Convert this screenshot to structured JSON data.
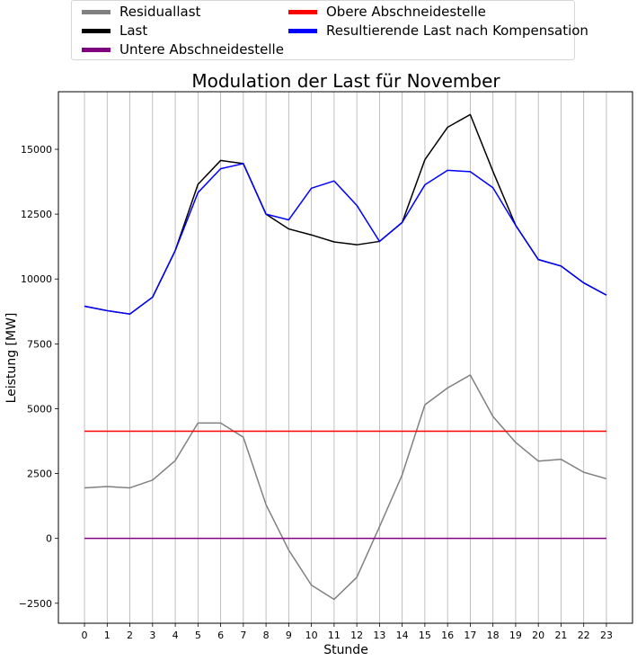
{
  "chart_data": {
    "type": "line",
    "title": "Modulation der Last für November",
    "xlabel": "Stunde",
    "ylabel": "Leistung [MW]",
    "xlim": [
      -1.15,
      24.15
    ],
    "ylim": [
      -3270,
      17220
    ],
    "grid": "vertical",
    "legend_position": "top",
    "x": [
      0,
      1,
      2,
      3,
      4,
      5,
      6,
      7,
      8,
      9,
      10,
      11,
      12,
      13,
      14,
      15,
      16,
      17,
      18,
      19,
      20,
      21,
      22,
      23
    ],
    "yticks": [
      -2500,
      0,
      2500,
      5000,
      7500,
      10000,
      12500,
      15000
    ],
    "ytick_labels": [
      "−2500",
      "0",
      "2500",
      "5000",
      "7500",
      "10000",
      "12500",
      "15000"
    ],
    "xtick_labels": [
      "0",
      "1",
      "2",
      "3",
      "4",
      "5",
      "6",
      "7",
      "8",
      "9",
      "10",
      "11",
      "12",
      "13",
      "14",
      "15",
      "16",
      "17",
      "18",
      "19",
      "20",
      "21",
      "22",
      "23"
    ],
    "series": [
      {
        "name": "Residuallast",
        "color": "#808080",
        "values": [
          1950,
          2000,
          1950,
          2250,
          3000,
          4450,
          4450,
          3900,
          1300,
          -450,
          -1800,
          -2350,
          -1500,
          450,
          2450,
          5150,
          5800,
          6300,
          4700,
          3700,
          2980,
          3050,
          2550,
          2300
        ]
      },
      {
        "name": "Last",
        "color": "#000000",
        "values": [
          8950,
          8780,
          8650,
          9300,
          11100,
          13650,
          14570,
          14450,
          12500,
          11930,
          11700,
          11430,
          11320,
          11450,
          12180,
          14600,
          15850,
          16340,
          14150,
          12070,
          10750,
          10500,
          9850,
          9380
        ]
      },
      {
        "name": "Untere Abschneidestelle",
        "color": "#800080",
        "values": [
          0,
          0,
          0,
          0,
          0,
          0,
          0,
          0,
          0,
          0,
          0,
          0,
          0,
          0,
          0,
          0,
          0,
          0,
          0,
          0,
          0,
          0,
          0,
          0
        ]
      },
      {
        "name": "Obere Abschneidestelle",
        "color": "#ff0000",
        "values": [
          4130,
          4130,
          4130,
          4130,
          4130,
          4130,
          4130,
          4130,
          4130,
          4130,
          4130,
          4130,
          4130,
          4130,
          4130,
          4130,
          4130,
          4130,
          4130,
          4130,
          4130,
          4130,
          4130,
          4130
        ]
      },
      {
        "name": "Resultierende Last nach Kompensation",
        "color": "#0000ff",
        "values": [
          8950,
          8780,
          8650,
          9300,
          11100,
          13330,
          14250,
          14450,
          12500,
          12280,
          13500,
          13780,
          12840,
          11450,
          12180,
          13630,
          14190,
          14140,
          13520,
          12070,
          10750,
          10500,
          9850,
          9380
        ]
      }
    ]
  }
}
